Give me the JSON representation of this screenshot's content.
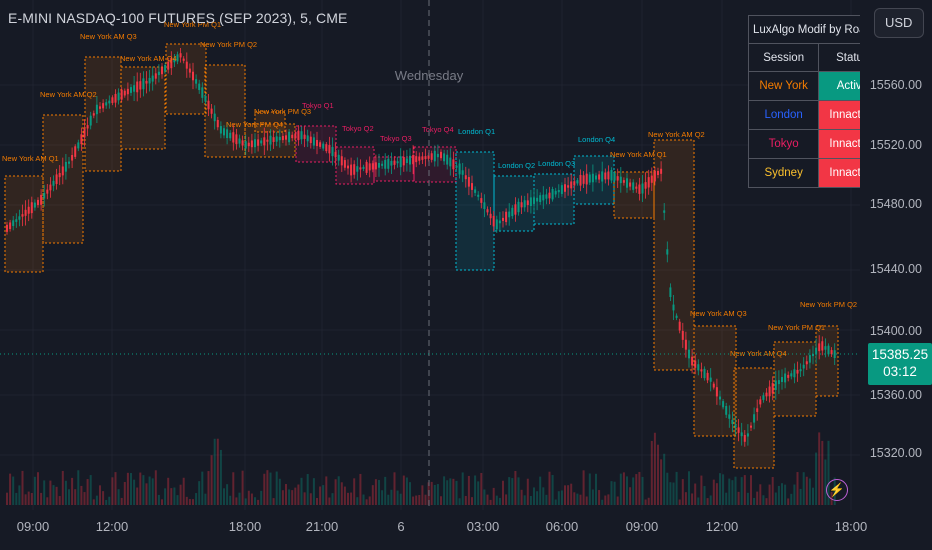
{
  "header": {
    "title": "E-MINI NASDAQ-100 FUTURES (SEP 2023), 5, CME",
    "currency": "USD"
  },
  "chart": {
    "day_label": "Wednesday",
    "colors": {
      "up": "#089981",
      "down": "#f23645",
      "ny": "#f57c00",
      "london": "#00bcd4",
      "tokyo": "#e91e63",
      "sydney": "#fbc02d"
    },
    "session_labels": [
      {
        "text": "New York AM Q1",
        "session": "ny"
      },
      {
        "text": "New York AM Q2",
        "session": "ny"
      },
      {
        "text": "New York AM Q3",
        "session": "ny"
      },
      {
        "text": "New York AM Q4",
        "session": "ny"
      },
      {
        "text": "New York PM Q1",
        "session": "ny"
      },
      {
        "text": "New York PM Q2",
        "session": "ny"
      },
      {
        "text": "New York PM Q3",
        "session": "ny"
      },
      {
        "text": "New York PM Q4",
        "session": "ny"
      },
      {
        "text": "Tokyo Q1",
        "session": "tokyo"
      },
      {
        "text": "Tokyo Q2",
        "session": "tokyo"
      },
      {
        "text": "Tokyo Q3",
        "session": "tokyo"
      },
      {
        "text": "Tokyo Q4",
        "session": "tokyo"
      },
      {
        "text": "London Q1",
        "session": "london"
      },
      {
        "text": "London Q2",
        "session": "london"
      },
      {
        "text": "London Q3",
        "session": "london"
      },
      {
        "text": "London Q4",
        "session": "london"
      },
      {
        "text": "New York AM Q1",
        "session": "ny"
      },
      {
        "text": "New York AM Q2",
        "session": "ny"
      },
      {
        "text": "New York AM Q3",
        "session": "ny"
      },
      {
        "text": "New York AM Q4",
        "session": "ny"
      },
      {
        "text": "New York PM Q1",
        "session": "ny"
      },
      {
        "text": "New York PM Q2",
        "session": "ny"
      }
    ]
  },
  "price_axis": {
    "labels": [
      "15560.00",
      "15520.00",
      "15480.00",
      "15440.00",
      "15400.00",
      "15360.00",
      "15320.00"
    ],
    "last_price": "15385.25",
    "countdown": "03:12"
  },
  "time_axis": {
    "labels": [
      "09:00",
      "12:00",
      "18:00",
      "21:00",
      "6",
      "03:00",
      "06:00",
      "09:00",
      "12:00",
      "18:00"
    ]
  },
  "status_table": {
    "title": "LuxAlgo Modif by Roam1",
    "col_session": "Session",
    "col_status": "Status",
    "rows": [
      {
        "session": "New York",
        "status": "Active",
        "color": "#f57c00"
      },
      {
        "session": "London",
        "status": "Innactive",
        "color": "#2962ff"
      },
      {
        "session": "Tokyo",
        "status": "Innactive",
        "color": "#e91e63"
      },
      {
        "session": "Sydney",
        "status": "Innactive",
        "color": "#fbc02d"
      }
    ]
  }
}
